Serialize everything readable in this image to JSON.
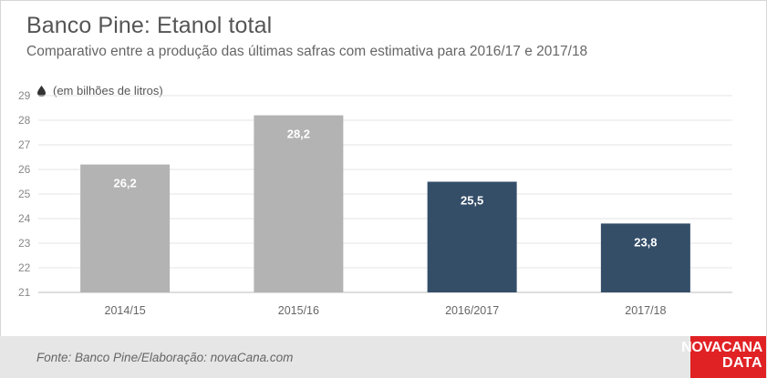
{
  "header": {
    "title": "Banco Pine: Etanol total",
    "subtitle": "Comparativo entre a produção das últimas safras com estimativa para 2016/17 e 2017/18",
    "unit_label": "(em bilhões de litros)",
    "unit_icon": "drop-icon"
  },
  "footer": {
    "source": "Fonte: Banco Pine/Elaboração: novaCana.com",
    "logo_line1": "NOVACANA",
    "logo_line2": "DATA"
  },
  "colors": {
    "historical": "#b3b3b3",
    "estimate": "#344e68",
    "grid": "#e6e6e6",
    "brand": "#e02225"
  },
  "chart_data": {
    "type": "bar",
    "title": "Banco Pine: Etanol total",
    "subtitle": "Comparativo entre a produção das últimas safras com estimativa para 2016/17 e 2017/18",
    "ylabel": "(em bilhões de litros)",
    "xlabel": "",
    "ylim": [
      21,
      29
    ],
    "yticks": [
      21,
      22,
      23,
      24,
      25,
      26,
      27,
      28,
      29
    ],
    "grid": true,
    "categories": [
      "2014/15",
      "2015/16",
      "2016/2017",
      "2017/18"
    ],
    "values": [
      26.2,
      28.2,
      25.5,
      23.8
    ],
    "value_labels": [
      "26,2",
      "28,2",
      "25,5",
      "23,8"
    ],
    "bar_colors": [
      "#b3b3b3",
      "#b3b3b3",
      "#344e68",
      "#344e68"
    ]
  }
}
